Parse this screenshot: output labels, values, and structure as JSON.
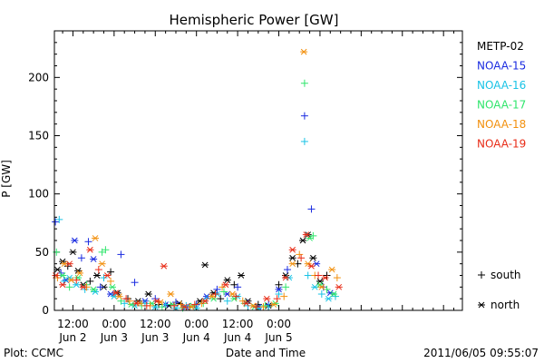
{
  "chart_data": {
    "type": "scatter",
    "title": "Hemispheric Power [GW]",
    "ylabel": "P [GW]",
    "xlabel": "Date and Time",
    "ylim": [
      0,
      240
    ],
    "yticks": [
      0,
      50,
      100,
      150,
      200
    ],
    "x_unit": "hours since 2011-06-02 00:00",
    "xlim": [
      6.6,
      125.5
    ],
    "xticks": [
      {
        "hours": 12,
        "line1": "12:00",
        "line2": "Jun 2"
      },
      {
        "hours": 24,
        "line1": "0:00",
        "line2": "Jun 3"
      },
      {
        "hours": 36,
        "line1": "12:00",
        "line2": "Jun 3"
      },
      {
        "hours": 48,
        "line1": "0:00",
        "line2": "Jun 4"
      },
      {
        "hours": 60,
        "line1": "12:00",
        "line2": "Jun 4"
      },
      {
        "hours": 72,
        "line1": "0:00",
        "line2": "Jun 5"
      }
    ],
    "legend_position": "right",
    "symbol_legend": [
      {
        "symbol": "+",
        "label": "south"
      },
      {
        "symbol": "*",
        "label": "north"
      }
    ],
    "series": [
      {
        "name": "METP-02",
        "color": "#000000",
        "points": [
          {
            "x": 7.5,
            "y": 35,
            "m": "*"
          },
          {
            "x": 9,
            "y": 42,
            "m": "*"
          },
          {
            "x": 10.5,
            "y": 38,
            "m": "+"
          },
          {
            "x": 12,
            "y": 50,
            "m": "*"
          },
          {
            "x": 13.5,
            "y": 34,
            "m": "*"
          },
          {
            "x": 15,
            "y": 22,
            "m": "*"
          },
          {
            "x": 17,
            "y": 25,
            "m": "+"
          },
          {
            "x": 19,
            "y": 30,
            "m": "*"
          },
          {
            "x": 21,
            "y": 20,
            "m": "*"
          },
          {
            "x": 23,
            "y": 33,
            "m": "+"
          },
          {
            "x": 25,
            "y": 15,
            "m": "*"
          },
          {
            "x": 28,
            "y": 10,
            "m": "+"
          },
          {
            "x": 31,
            "y": 8,
            "m": "*"
          },
          {
            "x": 34,
            "y": 14,
            "m": "*"
          },
          {
            "x": 37,
            "y": 5,
            "m": "+"
          },
          {
            "x": 40,
            "y": 4,
            "m": "*"
          },
          {
            "x": 43,
            "y": 6,
            "m": "*"
          },
          {
            "x": 46,
            "y": 3,
            "m": "+"
          },
          {
            "x": 49,
            "y": 8,
            "m": "*"
          },
          {
            "x": 50.5,
            "y": 39,
            "m": "*"
          },
          {
            "x": 53,
            "y": 15,
            "m": "*"
          },
          {
            "x": 55,
            "y": 10,
            "m": "+"
          },
          {
            "x": 57,
            "y": 26,
            "m": "*"
          },
          {
            "x": 59,
            "y": 22,
            "m": "+"
          },
          {
            "x": 61,
            "y": 30,
            "m": "*"
          },
          {
            "x": 63,
            "y": 8,
            "m": "*"
          },
          {
            "x": 66,
            "y": 5,
            "m": "+"
          },
          {
            "x": 69,
            "y": 4,
            "m": "*"
          },
          {
            "x": 72,
            "y": 22,
            "m": "+"
          },
          {
            "x": 74,
            "y": 30,
            "m": "*"
          },
          {
            "x": 76,
            "y": 45,
            "m": "*"
          },
          {
            "x": 77.5,
            "y": 40,
            "m": "+"
          },
          {
            "x": 79,
            "y": 60,
            "m": "*"
          },
          {
            "x": 80.5,
            "y": 65,
            "m": "*"
          },
          {
            "x": 82,
            "y": 45,
            "m": "*"
          },
          {
            "x": 84,
            "y": 25,
            "m": "*"
          },
          {
            "x": 86,
            "y": 30,
            "m": "+"
          }
        ]
      },
      {
        "name": "NOAA-15",
        "color": "#1a2be0",
        "points": [
          {
            "x": 6.9,
            "y": 76,
            "m": "+"
          },
          {
            "x": 8.5,
            "y": 32,
            "m": "+"
          },
          {
            "x": 10,
            "y": 26,
            "m": "*"
          },
          {
            "x": 12.5,
            "y": 60,
            "m": "*"
          },
          {
            "x": 14.5,
            "y": 45,
            "m": "+"
          },
          {
            "x": 16.5,
            "y": 59,
            "m": "+"
          },
          {
            "x": 18,
            "y": 44,
            "m": "*"
          },
          {
            "x": 20,
            "y": 20,
            "m": "+"
          },
          {
            "x": 23,
            "y": 14,
            "m": "*"
          },
          {
            "x": 26,
            "y": 48,
            "m": "+"
          },
          {
            "x": 30,
            "y": 24,
            "m": "+"
          },
          {
            "x": 33,
            "y": 8,
            "m": "*"
          },
          {
            "x": 36,
            "y": 10,
            "m": "+"
          },
          {
            "x": 39,
            "y": 5,
            "m": "*"
          },
          {
            "x": 42,
            "y": 7,
            "m": "+"
          },
          {
            "x": 45,
            "y": 3,
            "m": "*"
          },
          {
            "x": 48,
            "y": 5,
            "m": "+"
          },
          {
            "x": 51,
            "y": 12,
            "m": "*"
          },
          {
            "x": 54,
            "y": 18,
            "m": "+"
          },
          {
            "x": 57,
            "y": 14,
            "m": "*"
          },
          {
            "x": 60,
            "y": 20,
            "m": "+"
          },
          {
            "x": 63,
            "y": 6,
            "m": "+"
          },
          {
            "x": 66,
            "y": 3,
            "m": "*"
          },
          {
            "x": 69,
            "y": 5,
            "m": "+"
          },
          {
            "x": 72,
            "y": 18,
            "m": "*"
          },
          {
            "x": 74.5,
            "y": 35,
            "m": "+"
          },
          {
            "x": 79.5,
            "y": 167,
            "m": "+"
          },
          {
            "x": 81.5,
            "y": 87,
            "m": "+"
          },
          {
            "x": 83,
            "y": 40,
            "m": "*"
          },
          {
            "x": 85,
            "y": 20,
            "m": "+"
          },
          {
            "x": 87,
            "y": 15,
            "m": "*"
          }
        ]
      },
      {
        "name": "NOAA-16",
        "color": "#19c3e6",
        "points": [
          {
            "x": 8,
            "y": 78,
            "m": "+"
          },
          {
            "x": 9.5,
            "y": 25,
            "m": "+"
          },
          {
            "x": 11,
            "y": 28,
            "m": "*"
          },
          {
            "x": 13,
            "y": 22,
            "m": "*"
          },
          {
            "x": 15.5,
            "y": 18,
            "m": "+"
          },
          {
            "x": 18.5,
            "y": 16,
            "m": "*"
          },
          {
            "x": 21,
            "y": 28,
            "m": "+"
          },
          {
            "x": 24,
            "y": 12,
            "m": "*"
          },
          {
            "x": 27,
            "y": 6,
            "m": "+"
          },
          {
            "x": 30,
            "y": 4,
            "m": "*"
          },
          {
            "x": 33,
            "y": 6,
            "m": "+"
          },
          {
            "x": 36,
            "y": 3,
            "m": "*"
          },
          {
            "x": 39,
            "y": 5,
            "m": "+"
          },
          {
            "x": 42,
            "y": 2,
            "m": "*"
          },
          {
            "x": 45,
            "y": 4,
            "m": "+"
          },
          {
            "x": 48,
            "y": 2,
            "m": "*"
          },
          {
            "x": 51,
            "y": 10,
            "m": "+"
          },
          {
            "x": 54,
            "y": 14,
            "m": "*"
          },
          {
            "x": 57,
            "y": 8,
            "m": "+"
          },
          {
            "x": 60,
            "y": 12,
            "m": "*"
          },
          {
            "x": 63,
            "y": 4,
            "m": "+"
          },
          {
            "x": 66,
            "y": 2,
            "m": "*"
          },
          {
            "x": 69,
            "y": 3,
            "m": "+"
          },
          {
            "x": 72,
            "y": 14,
            "m": "+"
          },
          {
            "x": 75,
            "y": 28,
            "m": "*"
          },
          {
            "x": 79.5,
            "y": 145,
            "m": "+"
          },
          {
            "x": 80.5,
            "y": 30,
            "m": "+"
          },
          {
            "x": 82.5,
            "y": 20,
            "m": "*"
          },
          {
            "x": 84.5,
            "y": 14,
            "m": "+"
          },
          {
            "x": 86.5,
            "y": 10,
            "m": "*"
          },
          {
            "x": 88.5,
            "y": 12,
            "m": "+"
          }
        ]
      },
      {
        "name": "NOAA-17",
        "color": "#2fe56c",
        "points": [
          {
            "x": 7.2,
            "y": 50,
            "m": "+"
          },
          {
            "x": 9,
            "y": 30,
            "m": "*"
          },
          {
            "x": 11,
            "y": 20,
            "m": "+"
          },
          {
            "x": 13.5,
            "y": 28,
            "m": "*"
          },
          {
            "x": 16,
            "y": 22,
            "m": "+"
          },
          {
            "x": 18,
            "y": 18,
            "m": "*"
          },
          {
            "x": 20.5,
            "y": 50,
            "m": "+"
          },
          {
            "x": 21.5,
            "y": 52,
            "m": "+"
          },
          {
            "x": 23.5,
            "y": 20,
            "m": "*"
          },
          {
            "x": 26,
            "y": 8,
            "m": "+"
          },
          {
            "x": 29,
            "y": 5,
            "m": "*"
          },
          {
            "x": 32,
            "y": 4,
            "m": "+"
          },
          {
            "x": 35,
            "y": 6,
            "m": "*"
          },
          {
            "x": 38,
            "y": 3,
            "m": "+"
          },
          {
            "x": 41,
            "y": 5,
            "m": "*"
          },
          {
            "x": 44,
            "y": 2,
            "m": "+"
          },
          {
            "x": 47,
            "y": 4,
            "m": "*"
          },
          {
            "x": 50,
            "y": 6,
            "m": "+"
          },
          {
            "x": 53,
            "y": 10,
            "m": "*"
          },
          {
            "x": 56,
            "y": 16,
            "m": "+"
          },
          {
            "x": 59,
            "y": 10,
            "m": "*"
          },
          {
            "x": 62,
            "y": 6,
            "m": "+"
          },
          {
            "x": 65,
            "y": 3,
            "m": "*"
          },
          {
            "x": 68,
            "y": 4,
            "m": "+"
          },
          {
            "x": 71,
            "y": 6,
            "m": "*"
          },
          {
            "x": 74,
            "y": 20,
            "m": "+"
          },
          {
            "x": 79.5,
            "y": 195,
            "m": "+"
          },
          {
            "x": 81,
            "y": 62,
            "m": "*"
          },
          {
            "x": 82,
            "y": 64,
            "m": "+"
          },
          {
            "x": 84,
            "y": 22,
            "m": "*"
          },
          {
            "x": 86,
            "y": 18,
            "m": "+"
          },
          {
            "x": 88,
            "y": 14,
            "m": "*"
          }
        ]
      },
      {
        "name": "NOAA-18",
        "color": "#f2900e",
        "points": [
          {
            "x": 7.5,
            "y": 28,
            "m": "+"
          },
          {
            "x": 9.5,
            "y": 40,
            "m": "*"
          },
          {
            "x": 11.5,
            "y": 26,
            "m": "*"
          },
          {
            "x": 14,
            "y": 32,
            "m": "*"
          },
          {
            "x": 16,
            "y": 20,
            "m": "+"
          },
          {
            "x": 18.5,
            "y": 62,
            "m": "*"
          },
          {
            "x": 20.5,
            "y": 40,
            "m": "*"
          },
          {
            "x": 23,
            "y": 25,
            "m": "+"
          },
          {
            "x": 25.5,
            "y": 12,
            "m": "*"
          },
          {
            "x": 28.5,
            "y": 8,
            "m": "+"
          },
          {
            "x": 31.5,
            "y": 6,
            "m": "*"
          },
          {
            "x": 34.5,
            "y": 4,
            "m": "+"
          },
          {
            "x": 37.5,
            "y": 7,
            "m": "*"
          },
          {
            "x": 40.5,
            "y": 14,
            "m": "*"
          },
          {
            "x": 43.5,
            "y": 5,
            "m": "+"
          },
          {
            "x": 46.5,
            "y": 3,
            "m": "*"
          },
          {
            "x": 49.5,
            "y": 6,
            "m": "+"
          },
          {
            "x": 52.5,
            "y": 12,
            "m": "*"
          },
          {
            "x": 55.5,
            "y": 20,
            "m": "+"
          },
          {
            "x": 58.5,
            "y": 14,
            "m": "*"
          },
          {
            "x": 61.5,
            "y": 8,
            "m": "+"
          },
          {
            "x": 64.5,
            "y": 4,
            "m": "*"
          },
          {
            "x": 67.5,
            "y": 3,
            "m": "+"
          },
          {
            "x": 70.5,
            "y": 5,
            "m": "*"
          },
          {
            "x": 73.5,
            "y": 12,
            "m": "+"
          },
          {
            "x": 76,
            "y": 40,
            "m": "*"
          },
          {
            "x": 78,
            "y": 48,
            "m": "+"
          },
          {
            "x": 79.3,
            "y": 222,
            "m": "*"
          },
          {
            "x": 80.5,
            "y": 40,
            "m": "*"
          },
          {
            "x": 82.5,
            "y": 30,
            "m": "+"
          },
          {
            "x": 84.5,
            "y": 20,
            "m": "*"
          },
          {
            "x": 87.5,
            "y": 35,
            "m": "*"
          },
          {
            "x": 89,
            "y": 28,
            "m": "+"
          }
        ]
      },
      {
        "name": "NOAA-19",
        "color": "#e82c17",
        "points": [
          {
            "x": 7,
            "y": 30,
            "m": "*"
          },
          {
            "x": 9,
            "y": 22,
            "m": "*"
          },
          {
            "x": 11,
            "y": 40,
            "m": "*"
          },
          {
            "x": 13,
            "y": 26,
            "m": "+"
          },
          {
            "x": 15,
            "y": 20,
            "m": "*"
          },
          {
            "x": 17,
            "y": 52,
            "m": "*"
          },
          {
            "x": 19.5,
            "y": 35,
            "m": "+"
          },
          {
            "x": 22,
            "y": 30,
            "m": "*"
          },
          {
            "x": 24.5,
            "y": 15,
            "m": "*"
          },
          {
            "x": 27.5,
            "y": 10,
            "m": "+"
          },
          {
            "x": 30.5,
            "y": 6,
            "m": "*"
          },
          {
            "x": 33.5,
            "y": 4,
            "m": "+"
          },
          {
            "x": 36.5,
            "y": 8,
            "m": "*"
          },
          {
            "x": 38.5,
            "y": 38,
            "m": "*"
          },
          {
            "x": 41.5,
            "y": 4,
            "m": "+"
          },
          {
            "x": 44.5,
            "y": 3,
            "m": "*"
          },
          {
            "x": 47.5,
            "y": 5,
            "m": "+"
          },
          {
            "x": 50.5,
            "y": 8,
            "m": "*"
          },
          {
            "x": 53.5,
            "y": 14,
            "m": "+"
          },
          {
            "x": 56.5,
            "y": 22,
            "m": "*"
          },
          {
            "x": 59.5,
            "y": 12,
            "m": "+"
          },
          {
            "x": 62.5,
            "y": 6,
            "m": "*"
          },
          {
            "x": 65.5,
            "y": 3,
            "m": "+"
          },
          {
            "x": 68.5,
            "y": 10,
            "m": "*"
          },
          {
            "x": 71.5,
            "y": 10,
            "m": "+"
          },
          {
            "x": 74,
            "y": 28,
            "m": "*"
          },
          {
            "x": 76,
            "y": 52,
            "m": "*"
          },
          {
            "x": 78.5,
            "y": 45,
            "m": "+"
          },
          {
            "x": 80,
            "y": 65,
            "m": "*"
          },
          {
            "x": 81.5,
            "y": 38,
            "m": "*"
          },
          {
            "x": 83.5,
            "y": 30,
            "m": "+"
          },
          {
            "x": 85.5,
            "y": 28,
            "m": "*"
          },
          {
            "x": 89.5,
            "y": 20,
            "m": "*"
          }
        ]
      }
    ]
  },
  "footer": {
    "left": "Plot: CCMC",
    "right": "2011/06/05 09:55:07"
  }
}
